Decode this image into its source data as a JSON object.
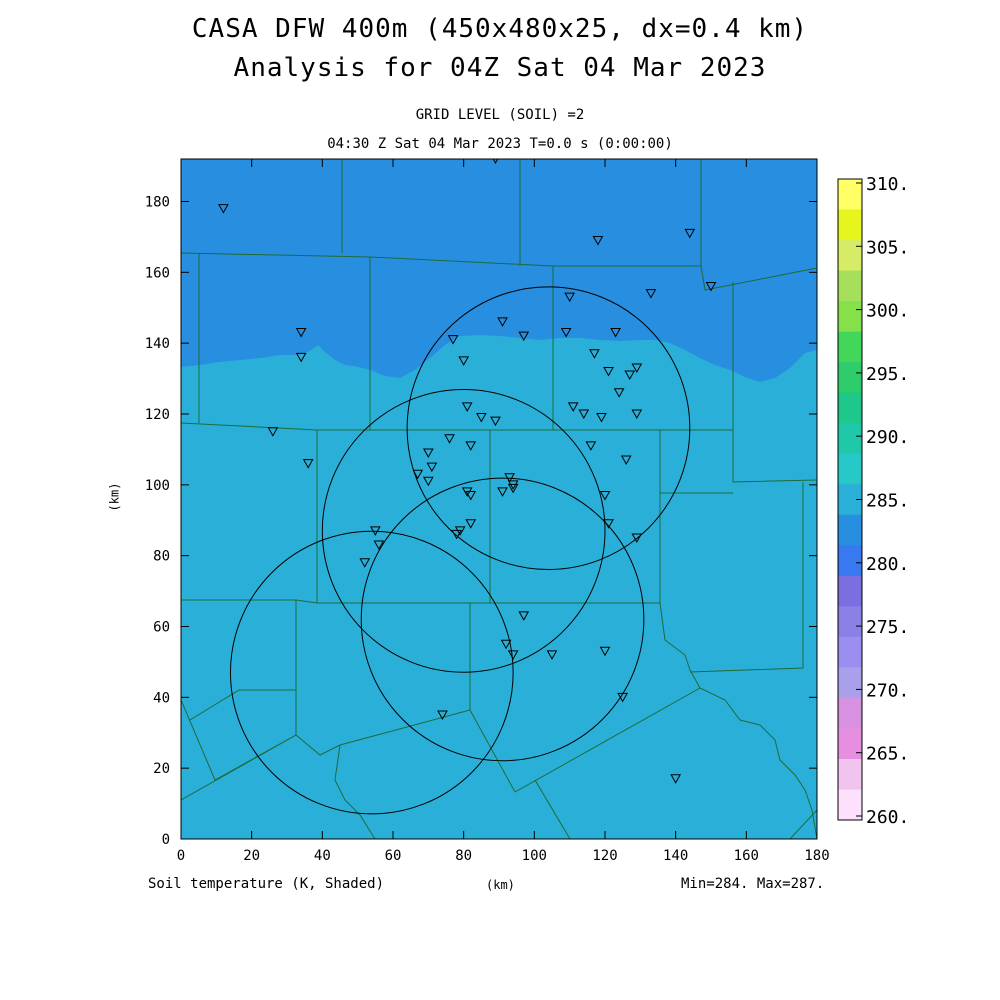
{
  "header": {
    "title_line1": "CASA DFW 400m (450x480x25, dx=0.4 km)",
    "title_line2": "Analysis for 04Z Sat 04 Mar 2023",
    "level": "GRID LEVEL (SOIL) =2",
    "time": "04:30 Z Sat 04 Mar 2023   T=0.0 s (0:00:00)"
  },
  "footer": {
    "variable": "Soil temperature (K, Shaded)",
    "x_unit": "(km)",
    "minmax": "Min=284. Max=287."
  },
  "axes": {
    "y_unit": "(km)",
    "x_ticks": [
      "0",
      "20",
      "40",
      "60",
      "80",
      "100",
      "120",
      "140",
      "160",
      "180"
    ],
    "y_ticks": [
      "0",
      "20",
      "40",
      "60",
      "80",
      "100",
      "120",
      "140",
      "160",
      "180"
    ],
    "x_range": [
      0,
      180
    ],
    "y_range": [
      0,
      192
    ]
  },
  "colorbar": {
    "labels": [
      "310.",
      "305.",
      "300.",
      "295.",
      "290.",
      "285.",
      "280.",
      "275.",
      "270.",
      "265.",
      "260."
    ],
    "colors": [
      "#ffff66",
      "#e6f51e",
      "#d6ec66",
      "#a6e05a",
      "#86e04a",
      "#42d65a",
      "#2ecc6a",
      "#1ec88a",
      "#1ec8a8",
      "#26c8c8",
      "#2ab0d8",
      "#288ee0",
      "#3878f0",
      "#7a6ee0",
      "#8a80e6",
      "#9a8ef0",
      "#a8a0ea",
      "#d890e0",
      "#e68ee0",
      "#f0c4ee",
      "#fce0fc"
    ]
  },
  "map": {
    "field_colors": {
      "cool": "#288ee0",
      "warm": "#2ab0d8"
    },
    "border_color": "#1e6b3a"
  },
  "radar_circles": [
    {
      "cx": 104,
      "cy": 116,
      "r": 40
    },
    {
      "cx": 80,
      "cy": 87,
      "r": 40
    },
    {
      "cx": 91,
      "cy": 62,
      "r": 40
    },
    {
      "cx": 54,
      "cy": 47,
      "r": 40
    }
  ],
  "stations": [
    [
      12,
      178
    ],
    [
      89,
      192
    ],
    [
      118,
      169
    ],
    [
      144,
      171
    ],
    [
      150,
      156
    ],
    [
      110,
      153
    ],
    [
      133,
      154
    ],
    [
      34,
      143
    ],
    [
      34,
      136
    ],
    [
      77,
      141
    ],
    [
      91,
      146
    ],
    [
      97,
      142
    ],
    [
      109,
      143
    ],
    [
      123,
      143
    ],
    [
      117,
      137
    ],
    [
      80,
      135
    ],
    [
      121,
      132
    ],
    [
      127,
      131
    ],
    [
      129,
      133
    ],
    [
      124,
      126
    ],
    [
      81,
      122
    ],
    [
      85,
      119
    ],
    [
      89,
      118
    ],
    [
      111,
      122
    ],
    [
      114,
      120
    ],
    [
      119,
      119
    ],
    [
      129,
      120
    ],
    [
      26,
      115
    ],
    [
      76,
      113
    ],
    [
      82,
      111
    ],
    [
      116,
      111
    ],
    [
      126,
      107
    ],
    [
      36,
      106
    ],
    [
      70,
      109
    ],
    [
      71,
      105
    ],
    [
      67,
      103
    ],
    [
      70,
      101
    ],
    [
      93,
      102
    ],
    [
      94,
      100
    ],
    [
      94,
      99
    ],
    [
      81,
      98
    ],
    [
      82,
      97
    ],
    [
      91,
      98
    ],
    [
      120,
      97
    ],
    [
      79,
      87
    ],
    [
      78,
      86
    ],
    [
      82,
      89
    ],
    [
      121,
      89
    ],
    [
      129,
      85
    ],
    [
      55,
      87
    ],
    [
      56,
      83
    ],
    [
      52,
      78
    ],
    [
      97,
      63
    ],
    [
      92,
      55
    ],
    [
      94,
      52
    ],
    [
      105,
      52
    ],
    [
      120,
      53
    ],
    [
      125,
      40
    ],
    [
      74,
      35
    ],
    [
      140,
      17
    ]
  ]
}
